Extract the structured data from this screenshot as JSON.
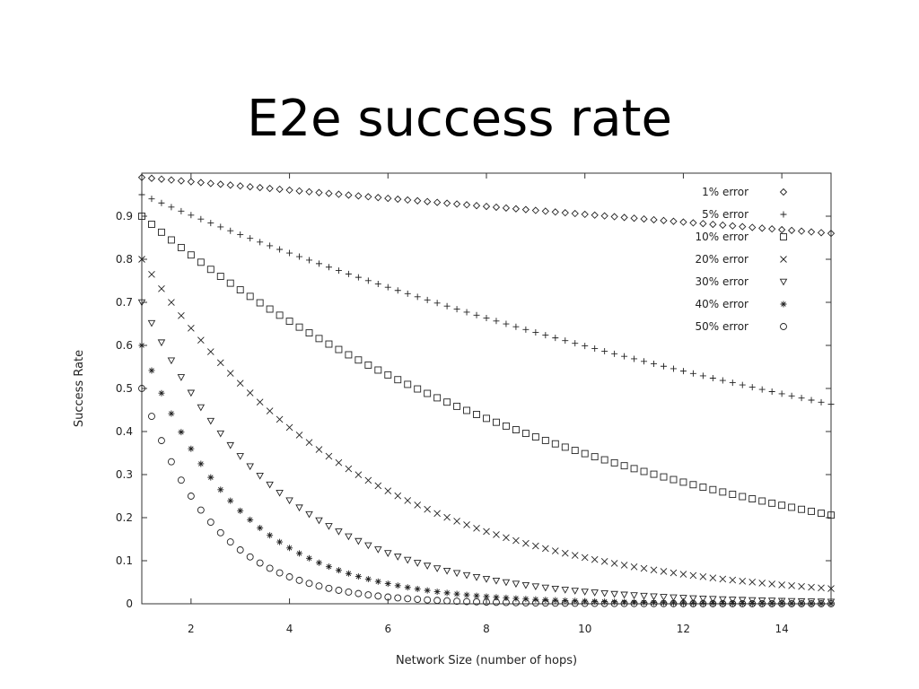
{
  "slide": {
    "title": "E2e success rate"
  },
  "chart_data": {
    "type": "scatter",
    "title": "",
    "xlabel": "Network Size (number of hops)",
    "ylabel": "Success Rate",
    "xlim": [
      1,
      15
    ],
    "ylim": [
      0,
      1
    ],
    "xticks": [
      2,
      4,
      6,
      8,
      10,
      12,
      14
    ],
    "yticks": [
      0,
      0.1,
      0.2,
      0.3,
      0.4,
      0.5,
      0.6,
      0.7,
      0.8,
      0.9
    ],
    "grid": false,
    "legend_position": "top-right",
    "x_step": 0.2,
    "series": [
      {
        "name": "1% error",
        "marker": "diamond",
        "error_rate": 0.01
      },
      {
        "name": "5% error",
        "marker": "plus",
        "error_rate": 0.05
      },
      {
        "name": "10% error",
        "marker": "square",
        "error_rate": 0.1
      },
      {
        "name": "20% error",
        "marker": "cross",
        "error_rate": 0.2
      },
      {
        "name": "30% error",
        "marker": "triangle-down",
        "error_rate": 0.3
      },
      {
        "name": "40% error",
        "marker": "star",
        "error_rate": 0.4
      },
      {
        "name": "50% error",
        "marker": "circle",
        "error_rate": 0.5
      }
    ]
  }
}
